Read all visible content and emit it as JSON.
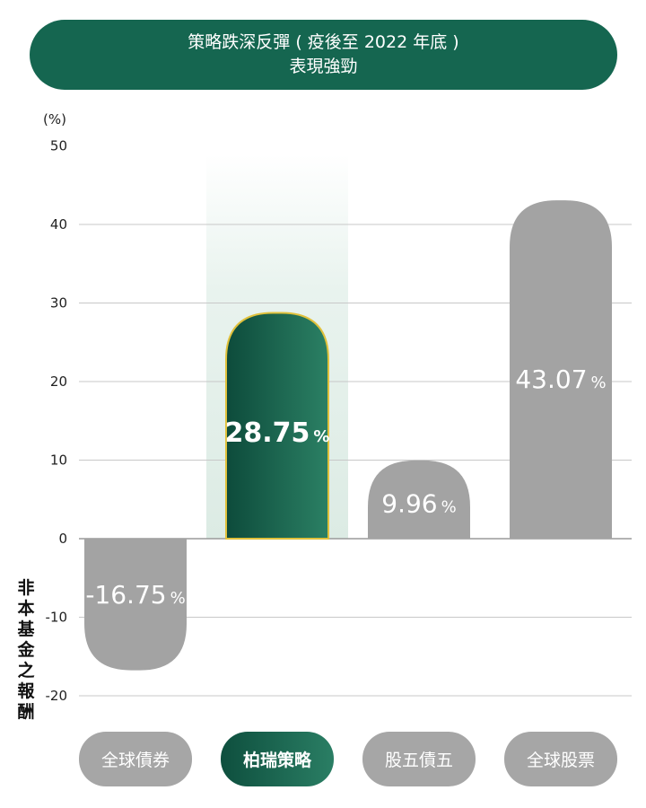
{
  "title": {
    "line1": "策略跌深反彈 ( 疫後至 2022 年底 )",
    "line2": "表現強勁"
  },
  "side_note": "非本基金之報酬",
  "chart_data": {
    "type": "bar",
    "ylabel": "(%)",
    "ylim": [
      -20,
      50
    ],
    "yticks": [
      -20,
      -10,
      0,
      10,
      20,
      30,
      40,
      50
    ],
    "grid": true,
    "categories": [
      "全球債券",
      "柏瑞策略",
      "股五債五",
      "全球股票"
    ],
    "values": [
      -16.75,
      28.75,
      9.96,
      43.07
    ],
    "value_labels": [
      "-16.75",
      "28.75",
      "9.96",
      "43.07"
    ],
    "value_unit": "%",
    "highlight_index": 1,
    "colors": {
      "bar": "#a3a3a3",
      "highlight_start": "#0d4b3b",
      "highlight_end": "#2b8064",
      "highlight_border": "#e0c13c",
      "title_bg": "#156650"
    }
  }
}
